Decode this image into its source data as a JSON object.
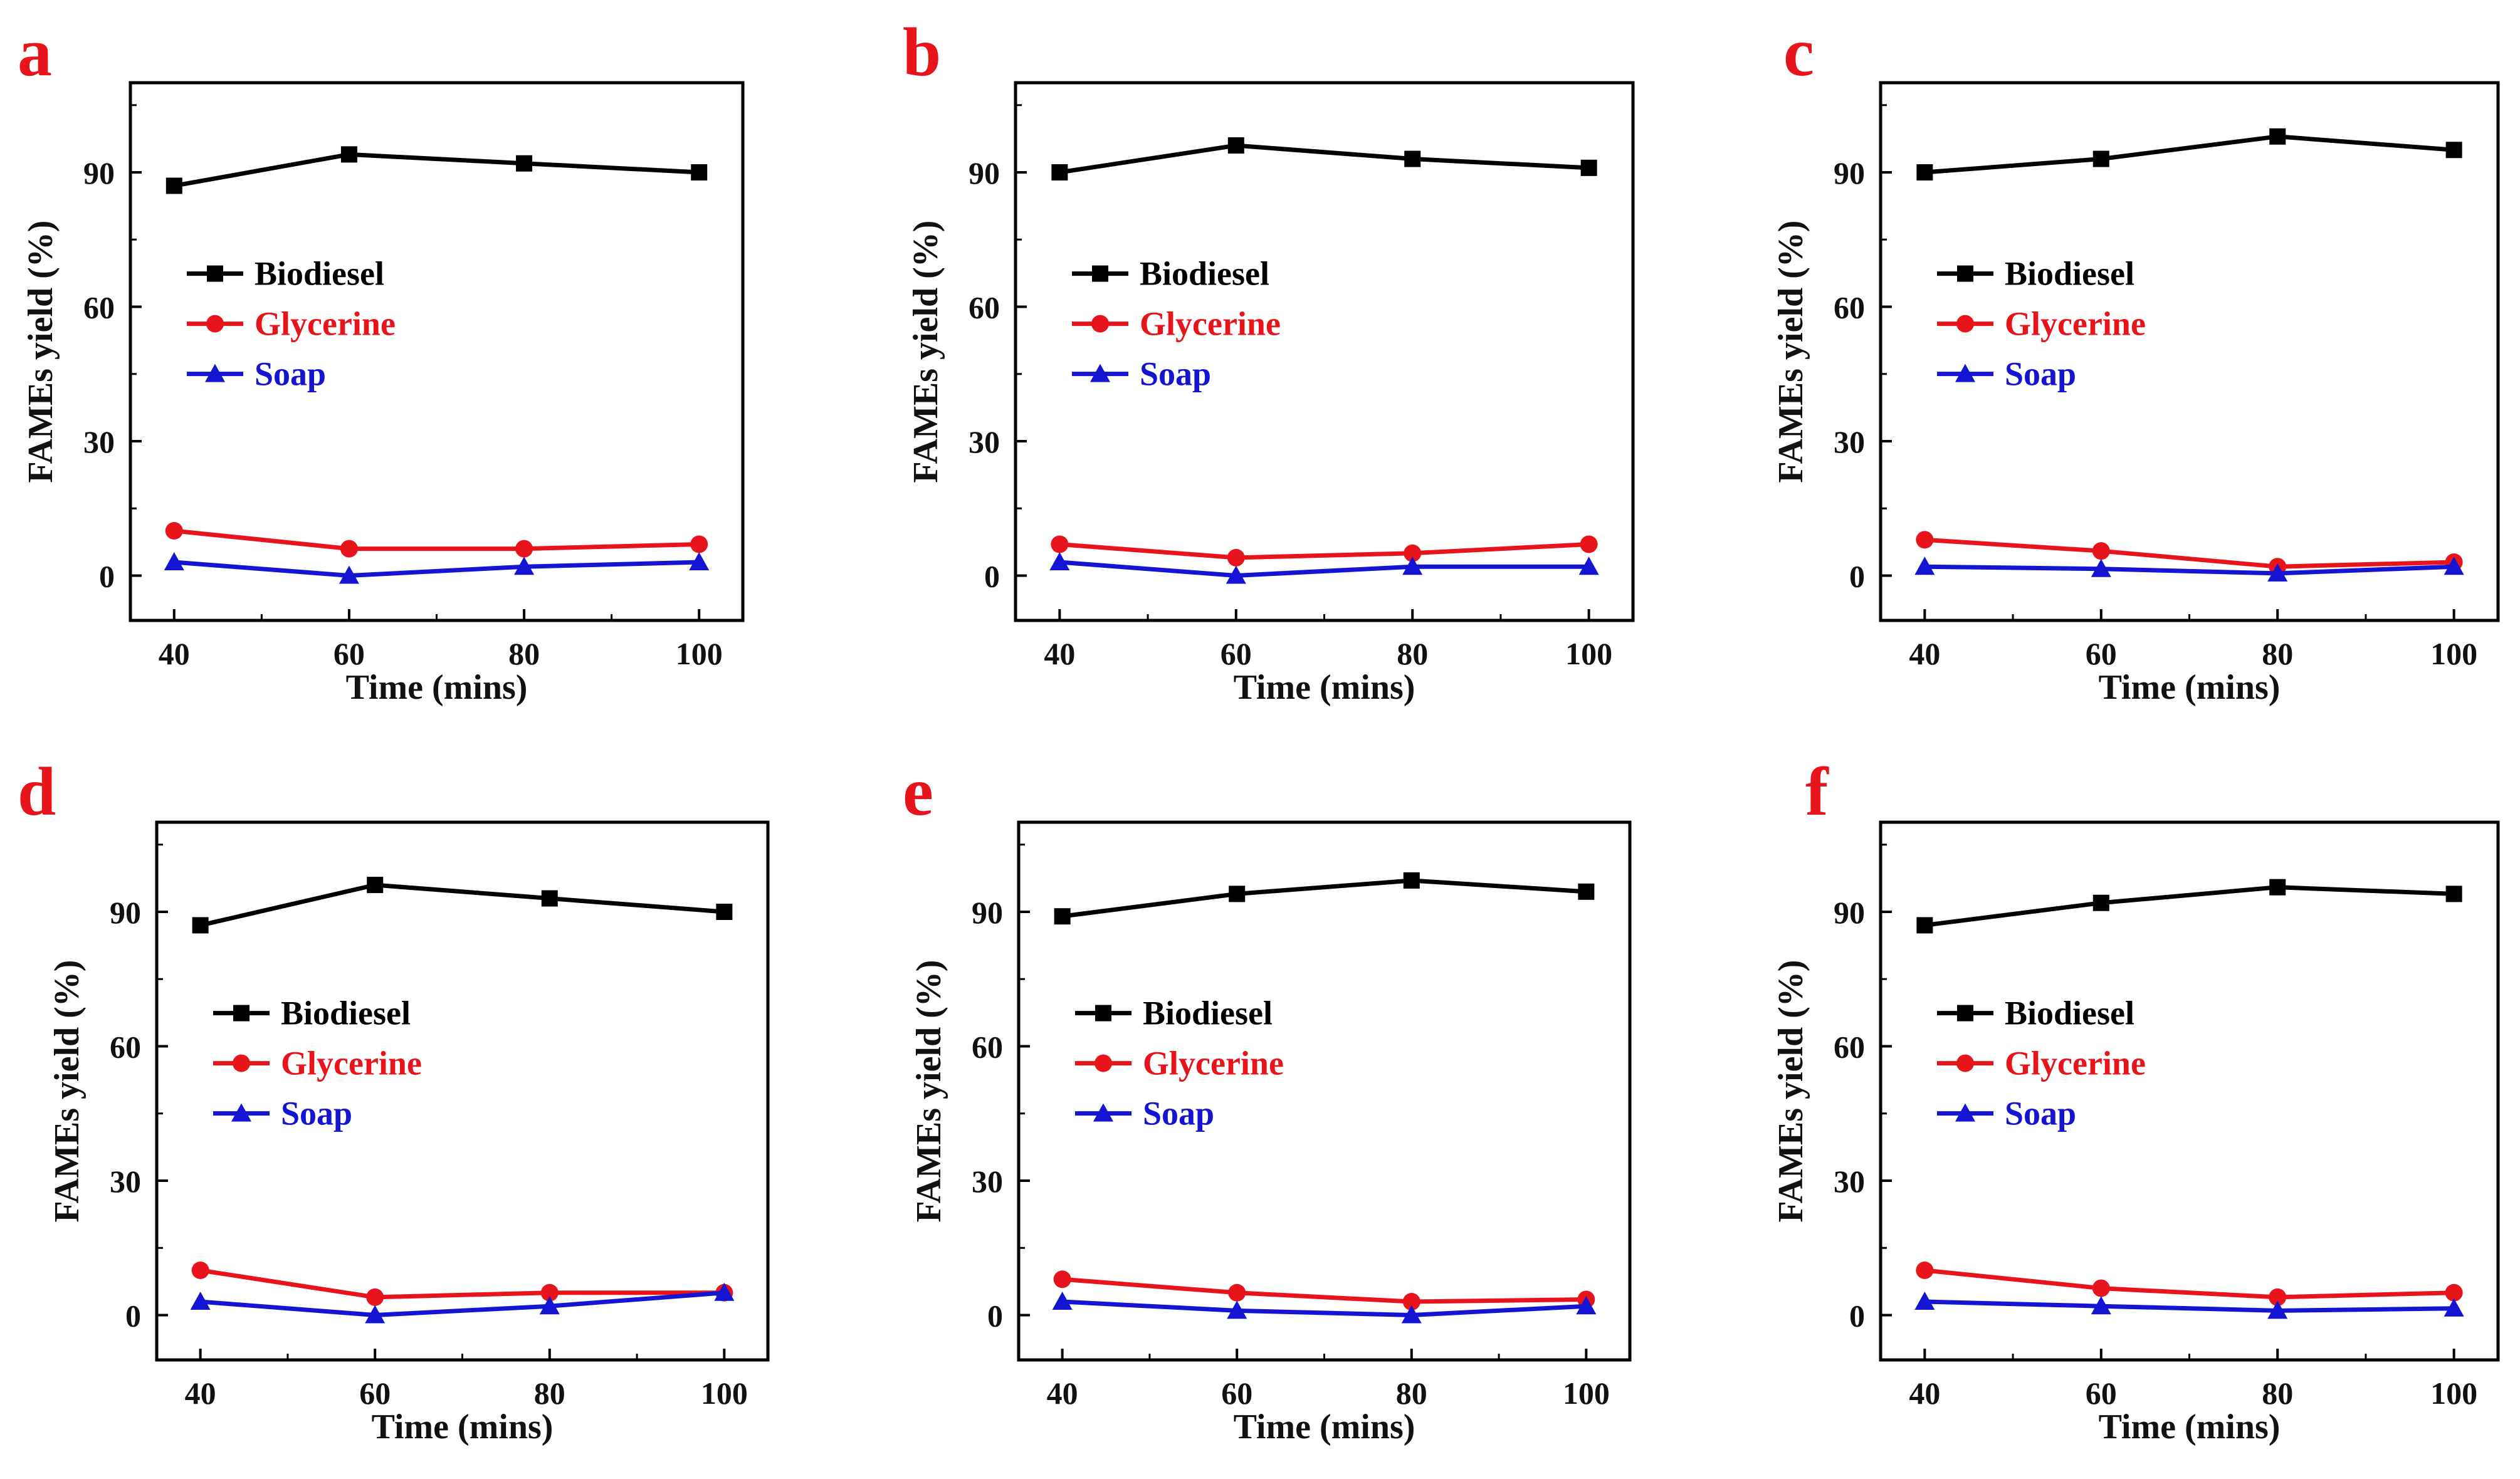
{
  "colors": {
    "biodiesel": "#000000",
    "glycerine": "#e8141b",
    "soap": "#1414d2",
    "panel_letter": "#e8141b"
  },
  "chart_data": [
    {
      "type": "line",
      "panel": "a",
      "xlabel": "Time (mins)",
      "ylabel": "FAMEs yield (%)",
      "x": [
        40,
        60,
        80,
        100
      ],
      "xticks": [
        "40",
        "60",
        "80",
        "100"
      ],
      "xlim": [
        35,
        105
      ],
      "yticks": [
        "0",
        "30",
        "60",
        "90"
      ],
      "ylim": [
        -10,
        110
      ],
      "grid": false,
      "legend": "left-middle",
      "series": [
        {
          "name": "Biodiesel",
          "marker": "square",
          "values": [
            87,
            94,
            92,
            90
          ]
        },
        {
          "name": "Glycerine",
          "marker": "circle",
          "values": [
            10,
            6,
            6,
            7
          ]
        },
        {
          "name": "Soap",
          "marker": "triangle",
          "values": [
            3,
            0,
            2,
            3
          ]
        }
      ]
    },
    {
      "type": "line",
      "panel": "b",
      "xlabel": "Time (mins)",
      "ylabel": "FAMEs yield (%)",
      "x": [
        40,
        60,
        80,
        100
      ],
      "xticks": [
        "40",
        "60",
        "80",
        "100"
      ],
      "xlim": [
        35,
        105
      ],
      "yticks": [
        "0",
        "30",
        "60",
        "90"
      ],
      "ylim": [
        -10,
        110
      ],
      "grid": false,
      "legend": "left-middle",
      "series": [
        {
          "name": "Biodiesel",
          "marker": "square",
          "values": [
            90,
            96,
            93,
            91
          ]
        },
        {
          "name": "Glycerine",
          "marker": "circle",
          "values": [
            7,
            4,
            5,
            7
          ]
        },
        {
          "name": "Soap",
          "marker": "triangle",
          "values": [
            3,
            0,
            2,
            2
          ]
        }
      ]
    },
    {
      "type": "line",
      "panel": "c",
      "xlabel": "Time (mins)",
      "ylabel": "FAMEs yield (%)",
      "x": [
        40,
        60,
        80,
        100
      ],
      "xticks": [
        "40",
        "60",
        "80",
        "100"
      ],
      "xlim": [
        35,
        105
      ],
      "yticks": [
        "0",
        "30",
        "60",
        "90"
      ],
      "ylim": [
        -10,
        110
      ],
      "grid": false,
      "legend": "left-middle",
      "series": [
        {
          "name": "Biodiesel",
          "marker": "square",
          "values": [
            90,
            93,
            98,
            95
          ]
        },
        {
          "name": "Glycerine",
          "marker": "circle",
          "values": [
            8,
            5.5,
            2,
            3
          ]
        },
        {
          "name": "Soap",
          "marker": "triangle",
          "values": [
            2,
            1.5,
            0.5,
            2
          ]
        }
      ]
    },
    {
      "type": "line",
      "panel": "d",
      "xlabel": "Time (mins)",
      "ylabel": "FAMEs yield (%)",
      "x": [
        40,
        60,
        80,
        100
      ],
      "xticks": [
        "40",
        "60",
        "80",
        "100"
      ],
      "xlim": [
        35,
        105
      ],
      "yticks": [
        "0",
        "30",
        "60",
        "90"
      ],
      "ylim": [
        -10,
        110
      ],
      "grid": false,
      "legend": "left-middle",
      "series": [
        {
          "name": "Biodiesel",
          "marker": "square",
          "values": [
            87,
            96,
            93,
            90
          ]
        },
        {
          "name": "Glycerine",
          "marker": "circle",
          "values": [
            10,
            4,
            5,
            5
          ]
        },
        {
          "name": "Soap",
          "marker": "triangle",
          "values": [
            3,
            0,
            2,
            5
          ]
        }
      ]
    },
    {
      "type": "line",
      "panel": "e",
      "xlabel": "Time (mins)",
      "ylabel": "FAMEs yield (%)",
      "x": [
        40,
        60,
        80,
        100
      ],
      "xticks": [
        "40",
        "60",
        "80",
        "100"
      ],
      "xlim": [
        35,
        105
      ],
      "yticks": [
        "0",
        "30",
        "60",
        "90"
      ],
      "ylim": [
        -10,
        110
      ],
      "grid": false,
      "legend": "left-middle",
      "series": [
        {
          "name": "Biodiesel",
          "marker": "square",
          "values": [
            89,
            94,
            97,
            94.5
          ]
        },
        {
          "name": "Glycerine",
          "marker": "circle",
          "values": [
            8,
            5,
            3,
            3.5
          ]
        },
        {
          "name": "Soap",
          "marker": "triangle",
          "values": [
            3,
            1,
            0,
            2
          ]
        }
      ]
    },
    {
      "type": "line",
      "panel": "f",
      "xlabel": "Time (mins)",
      "ylabel": "FAMEs yield (%)",
      "x": [
        40,
        60,
        80,
        100
      ],
      "xticks": [
        "40",
        "60",
        "80",
        "100"
      ],
      "xlim": [
        35,
        105
      ],
      "yticks": [
        "0",
        "30",
        "60",
        "90"
      ],
      "ylim": [
        -10,
        110
      ],
      "grid": false,
      "legend": "left-middle",
      "series": [
        {
          "name": "Biodiesel",
          "marker": "square",
          "values": [
            87,
            92,
            95.5,
            94
          ]
        },
        {
          "name": "Glycerine",
          "marker": "circle",
          "values": [
            10,
            6,
            4,
            5
          ]
        },
        {
          "name": "Soap",
          "marker": "triangle",
          "values": [
            3,
            2,
            1,
            1.5
          ]
        }
      ]
    }
  ]
}
